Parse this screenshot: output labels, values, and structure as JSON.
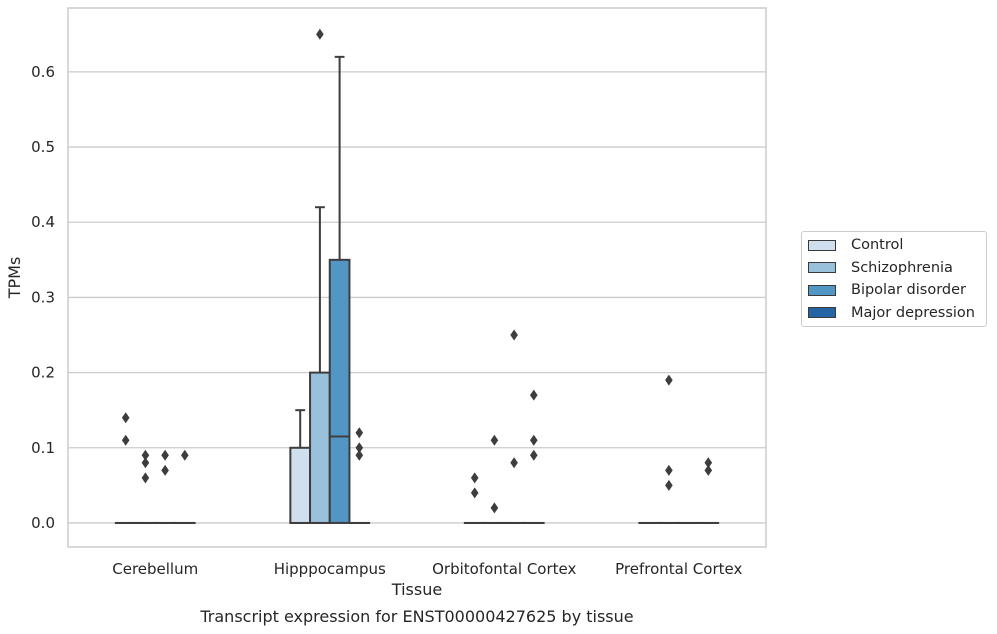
{
  "chart_data": {
    "type": "box",
    "xlabel": "Tissue",
    "ylabel": "TPMs",
    "caption": "Transcript expression for ENST00000427625 by tissue",
    "ylim": [
      -0.032,
      0.685
    ],
    "yticks": [
      0.0,
      0.1,
      0.2,
      0.3,
      0.4,
      0.5,
      0.6
    ],
    "ytick_labels": [
      "0.0",
      "0.1",
      "0.2",
      "0.3",
      "0.4",
      "0.5",
      "0.6"
    ],
    "grid": "horizontal",
    "legend_position": "right",
    "categories": [
      "Cerebellum",
      "Hipppocampus",
      "Orbitofontal Cortex",
      "Prefrontal Cortex"
    ],
    "series": [
      {
        "name": "Control",
        "color": "#d0dfee",
        "boxes": [
          {
            "q1": 0,
            "median": 0,
            "q3": 0,
            "whisker_low": 0,
            "whisker_high": 0,
            "outliers": [
              0.14,
              0.11
            ]
          },
          {
            "q1": 0,
            "median": 0,
            "q3": 0.1,
            "whisker_low": 0,
            "whisker_high": 0.15,
            "outliers": []
          },
          {
            "q1": 0,
            "median": 0,
            "q3": 0,
            "whisker_low": 0,
            "whisker_high": 0,
            "outliers": [
              0.06,
              0.04
            ]
          },
          {
            "q1": 0,
            "median": 0,
            "q3": 0,
            "whisker_low": 0,
            "whisker_high": 0,
            "outliers": []
          }
        ]
      },
      {
        "name": "Schizophrenia",
        "color": "#9ac1dc",
        "boxes": [
          {
            "q1": 0,
            "median": 0,
            "q3": 0,
            "whisker_low": 0,
            "whisker_high": 0,
            "outliers": [
              0.09,
              0.08,
              0.06
            ]
          },
          {
            "q1": 0,
            "median": 0,
            "q3": 0.2,
            "whisker_low": 0,
            "whisker_high": 0.42,
            "outliers": [
              0.65
            ]
          },
          {
            "q1": 0,
            "median": 0,
            "q3": 0,
            "whisker_low": 0,
            "whisker_high": 0,
            "outliers": [
              0.11,
              0.02
            ]
          },
          {
            "q1": 0,
            "median": 0,
            "q3": 0,
            "whisker_low": 0,
            "whisker_high": 0,
            "outliers": [
              0.19,
              0.07,
              0.05
            ]
          }
        ]
      },
      {
        "name": "Bipolar disorder",
        "color": "#5296c6",
        "boxes": [
          {
            "q1": 0,
            "median": 0,
            "q3": 0,
            "whisker_low": 0,
            "whisker_high": 0,
            "outliers": [
              0.09,
              0.07
            ]
          },
          {
            "q1": 0,
            "median": 0.115,
            "q3": 0.35,
            "whisker_low": 0,
            "whisker_high": 0.62,
            "outliers": []
          },
          {
            "q1": 0,
            "median": 0,
            "q3": 0,
            "whisker_low": 0,
            "whisker_high": 0,
            "outliers": [
              0.25,
              0.08
            ]
          },
          {
            "q1": 0,
            "median": 0,
            "q3": 0,
            "whisker_low": 0,
            "whisker_high": 0,
            "outliers": []
          }
        ]
      },
      {
        "name": "Major depression",
        "color": "#2565a5",
        "boxes": [
          {
            "q1": 0,
            "median": 0,
            "q3": 0,
            "whisker_low": 0,
            "whisker_high": 0,
            "outliers": [
              0.09
            ]
          },
          {
            "q1": 0,
            "median": 0,
            "q3": 0,
            "whisker_low": 0,
            "whisker_high": 0,
            "outliers": [
              0.12,
              0.1,
              0.09
            ]
          },
          {
            "q1": 0,
            "median": 0,
            "q3": 0,
            "whisker_low": 0,
            "whisker_high": 0,
            "outliers": [
              0.17,
              0.11,
              0.09
            ]
          },
          {
            "q1": 0,
            "median": 0,
            "q3": 0,
            "whisker_low": 0,
            "whisker_high": 0,
            "outliers": [
              0.08,
              0.07
            ]
          }
        ]
      }
    ]
  }
}
